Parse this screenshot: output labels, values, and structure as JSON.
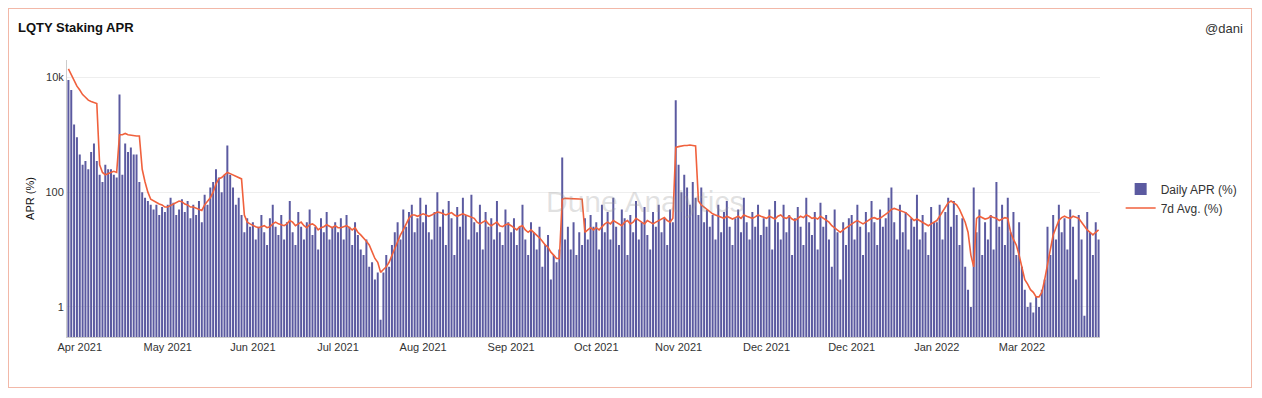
{
  "chart_data": {
    "type": "bar",
    "title": "LQTY Staking APR",
    "y_label": "APR (%)",
    "annotations": [
      "@dani",
      "Dune Analytics"
    ],
    "log": "y",
    "grid": true,
    "legend": "right",
    "ylim": [
      0.3,
      20000
    ],
    "yticks": [
      1,
      100,
      {
        "value": 10000,
        "label": "10k"
      }
    ],
    "categories": [
      null,
      null,
      null,
      null,
      "Apr 2021",
      null,
      null,
      null,
      null,
      null,
      null,
      null,
      null,
      null,
      null,
      null,
      null,
      null,
      null,
      null,
      null,
      null,
      null,
      null,
      null,
      null,
      null,
      null,
      null,
      null,
      null,
      null,
      null,
      null,
      null,
      "May 2021",
      null,
      null,
      null,
      null,
      null,
      null,
      null,
      null,
      null,
      null,
      null,
      null,
      null,
      null,
      null,
      null,
      null,
      null,
      null,
      null,
      null,
      null,
      null,
      null,
      null,
      null,
      null,
      null,
      null,
      "Jun 2021",
      null,
      null,
      null,
      null,
      null,
      null,
      null,
      null,
      null,
      null,
      null,
      null,
      null,
      null,
      null,
      null,
      null,
      null,
      null,
      null,
      null,
      null,
      null,
      null,
      null,
      null,
      null,
      null,
      null,
      "Jul 2021",
      null,
      null,
      null,
      null,
      null,
      null,
      null,
      null,
      null,
      null,
      null,
      null,
      null,
      null,
      null,
      null,
      null,
      null,
      null,
      null,
      null,
      null,
      null,
      null,
      null,
      null,
      null,
      null,
      null,
      "Aug 2021",
      null,
      null,
      null,
      null,
      null,
      null,
      null,
      null,
      null,
      null,
      null,
      null,
      null,
      null,
      null,
      null,
      null,
      null,
      null,
      null,
      null,
      null,
      null,
      null,
      null,
      null,
      null,
      null,
      null,
      null,
      "Sep 2021",
      null,
      null,
      null,
      null,
      null,
      null,
      null,
      null,
      null,
      null,
      null,
      null,
      null,
      null,
      null,
      null,
      null,
      null,
      null,
      null,
      null,
      null,
      null,
      null,
      null,
      null,
      null,
      null,
      null,
      "Oct 2021",
      null,
      null,
      null,
      null,
      null,
      null,
      null,
      null,
      null,
      null,
      null,
      null,
      null,
      null,
      null,
      null,
      null,
      null,
      null,
      null,
      null,
      null,
      null,
      null,
      null,
      null,
      null,
      null,
      "Nov 2021",
      null,
      null,
      null,
      null,
      null,
      null,
      null,
      null,
      null,
      null,
      null,
      null,
      null,
      null,
      null,
      null,
      null,
      null,
      null,
      null,
      null,
      null,
      null,
      null,
      null,
      null,
      null,
      null,
      null,
      null,
      "Dec 2021",
      null,
      null,
      null,
      null,
      null,
      null,
      null,
      null,
      null,
      null,
      null,
      null,
      null,
      null,
      null,
      null,
      null,
      null,
      null,
      null,
      null,
      null,
      null,
      null,
      null,
      null,
      null,
      null,
      null,
      "Dec 2021",
      null,
      null,
      null,
      null,
      null,
      null,
      null,
      null,
      null,
      null,
      null,
      null,
      null,
      null,
      null,
      null,
      null,
      null,
      null,
      null,
      null,
      null,
      null,
      null,
      null,
      null,
      null,
      null,
      null,
      "Jan 2022",
      null,
      null,
      null,
      null,
      null,
      null,
      null,
      null,
      null,
      null,
      null,
      null,
      null,
      null,
      null,
      null,
      null,
      null,
      null,
      null,
      null,
      null,
      null,
      null,
      null,
      null,
      null,
      null,
      null,
      "Mar 2022",
      null,
      null,
      null,
      null,
      null,
      null,
      null,
      null,
      null,
      null,
      null,
      null,
      null,
      null,
      null,
      null,
      null,
      null,
      null,
      null,
      null,
      null,
      null,
      null,
      null,
      null,
      null
    ],
    "series": [
      {
        "name": "Daily APR (%)",
        "type": "bar",
        "color": "#5b5aa0",
        "values": [
          9000,
          6000,
          1500,
          900,
          450,
          300,
          350,
          250,
          500,
          700,
          350,
          200,
          150,
          300,
          250,
          250,
          200,
          180,
          5000,
          200,
          700,
          500,
          600,
          450,
          450,
          150,
          100,
          80,
          70,
          60,
          50,
          60,
          40,
          55,
          45,
          60,
          80,
          65,
          40,
          50,
          75,
          45,
          70,
          35,
          60,
          40,
          70,
          30,
          90,
          60,
          120,
          150,
          250,
          180,
          100,
          200,
          650,
          200,
          120,
          60,
          80,
          40,
          20,
          35,
          25,
          30,
          15,
          25,
          40,
          20,
          12,
          35,
          60,
          25,
          18,
          40,
          15,
          30,
          70,
          20,
          12,
          45,
          25,
          15,
          30,
          50,
          18,
          25,
          10,
          35,
          20,
          45,
          15,
          25,
          30,
          20,
          35,
          15,
          40,
          25,
          12,
          30,
          18,
          10,
          8,
          15,
          5,
          6,
          3,
          4,
          0.6,
          4,
          8,
          5,
          12,
          20,
          30,
          15,
          50,
          25,
          45,
          60,
          20,
          35,
          80,
          30,
          60,
          20,
          15,
          45,
          100,
          25,
          50,
          12,
          70,
          35,
          8,
          55,
          25,
          80,
          40,
          15,
          90,
          30,
          20,
          60,
          10,
          45,
          25,
          35,
          15,
          70,
          20,
          12,
          50,
          30,
          20,
          35,
          12,
          25,
          60,
          15,
          8,
          30,
          20,
          10,
          25,
          5,
          12,
          18,
          3,
          8,
          6,
          10,
          400,
          15,
          25,
          10,
          30,
          8,
          20,
          12,
          35,
          15,
          40,
          25,
          30,
          10,
          60,
          20,
          45,
          15,
          80,
          25,
          12,
          50,
          35,
          8,
          40,
          20,
          70,
          15,
          30,
          55,
          18,
          10,
          45,
          25,
          60,
          20,
          35,
          12,
          50,
          30,
          4000,
          300,
          100,
          200,
          120,
          60,
          150,
          80,
          40,
          120,
          30,
          50,
          25,
          40,
          15,
          60,
          20,
          45,
          70,
          25,
          12,
          35,
          50,
          20,
          80,
          30,
          15,
          45,
          25,
          60,
          18,
          35,
          25,
          50,
          10,
          70,
          30,
          15,
          60,
          20,
          40,
          8,
          35,
          55,
          25,
          12,
          80,
          30,
          18,
          45,
          10,
          65,
          25,
          40,
          15,
          5,
          50,
          20,
          3,
          30,
          12,
          35,
          40,
          15,
          60,
          25,
          8,
          45,
          20,
          70,
          30,
          12,
          50,
          25,
          35,
          80,
          120,
          30,
          15,
          60,
          20,
          45,
          10,
          35,
          25,
          90,
          15,
          40,
          20,
          8,
          55,
          30,
          30,
          60,
          15,
          45,
          80,
          25,
          70,
          40,
          12,
          35,
          5,
          2,
          1,
          120,
          20,
          50,
          8,
          30,
          15,
          40,
          10,
          150,
          25,
          60,
          12,
          80,
          20,
          45,
          8,
          30,
          5,
          2,
          1,
          1.2,
          0.8,
          1.5,
          1,
          2,
          3,
          25,
          8,
          40,
          15,
          60,
          20,
          35,
          10,
          50,
          25,
          3,
          40,
          15,
          0.7,
          45,
          20,
          8,
          30,
          15
        ]
      },
      {
        "name": "7d Avg. (%)",
        "type": "line",
        "color": "#f0613d",
        "values": [
          14000,
          11000,
          9000,
          7000,
          6000,
          5000,
          4500,
          4000,
          3800,
          3600,
          3500,
          300,
          220,
          200,
          210,
          220,
          230,
          220,
          1000,
          1000,
          1050,
          1000,
          980,
          950,
          950,
          950,
          250,
          150,
          100,
          75,
          70,
          65,
          62,
          60,
          55,
          55,
          58,
          62,
          65,
          70,
          68,
          62,
          60,
          55,
          55,
          52,
          50,
          48,
          60,
          70,
          80,
          100,
          140,
          170,
          180,
          200,
          220,
          210,
          200,
          190,
          180,
          170,
          40,
          30,
          28,
          26,
          25,
          24,
          25,
          26,
          24,
          25,
          28,
          30,
          28,
          27,
          26,
          28,
          32,
          30,
          26,
          28,
          30,
          26,
          24,
          27,
          28,
          26,
          22,
          24,
          25,
          27,
          25,
          24,
          26,
          24,
          24,
          25,
          26,
          24,
          22,
          24,
          20,
          18,
          16,
          14,
          12,
          9,
          7,
          6,
          4,
          4.5,
          5,
          6,
          8,
          10,
          14,
          18,
          22,
          28,
          35,
          40,
          40,
          38,
          40,
          42,
          40,
          38,
          40,
          42,
          45,
          44,
          42,
          40,
          42,
          44,
          40,
          38,
          40,
          42,
          40,
          38,
          36,
          35,
          30,
          28,
          30,
          32,
          28,
          26,
          28,
          30,
          26,
          25,
          27,
          28,
          26,
          24,
          22,
          25,
          26,
          22,
          20,
          22,
          20,
          18,
          16,
          14,
          12,
          11,
          9,
          8,
          7,
          7,
          75,
          78,
          78,
          76,
          78,
          77,
          76,
          75,
          20,
          22,
          24,
          22,
          24,
          22,
          25,
          28,
          30,
          28,
          32,
          30,
          28,
          26,
          30,
          32,
          28,
          30,
          35,
          32,
          30,
          28,
          32,
          30,
          28,
          30,
          32,
          34,
          36,
          32,
          30,
          35,
          600,
          620,
          640,
          650,
          650,
          660,
          650,
          640,
          70,
          60,
          55,
          50,
          45,
          42,
          40,
          38,
          36,
          35,
          38,
          36,
          34,
          36,
          38,
          35,
          40,
          38,
          36,
          35,
          37,
          40,
          38,
          36,
          35,
          38,
          36,
          34,
          38,
          40,
          36,
          35,
          38,
          34,
          32,
          35,
          38,
          36,
          40,
          38,
          35,
          36,
          34,
          38,
          35,
          32,
          30,
          26,
          24,
          22,
          20,
          22,
          24,
          26,
          28,
          30,
          32,
          30,
          28,
          30,
          32,
          35,
          36,
          34,
          35,
          38,
          40,
          45,
          50,
          52,
          50,
          48,
          46,
          44,
          40,
          35,
          32,
          34,
          32,
          30,
          28,
          26,
          28,
          30,
          32,
          38,
          45,
          55,
          65,
          70,
          65,
          60,
          50,
          40,
          30,
          20,
          8,
          5,
          35,
          38,
          36,
          34,
          35,
          38,
          36,
          35,
          32,
          34,
          36,
          35,
          20,
          15,
          12,
          8,
          5,
          3,
          2.5,
          2,
          1.8,
          1.5,
          1.5,
          1.8,
          3,
          6,
          10,
          18,
          25,
          32,
          36,
          38,
          36,
          35,
          38,
          37,
          35,
          30,
          25,
          22,
          20,
          18,
          20,
          22
        ]
      }
    ]
  }
}
